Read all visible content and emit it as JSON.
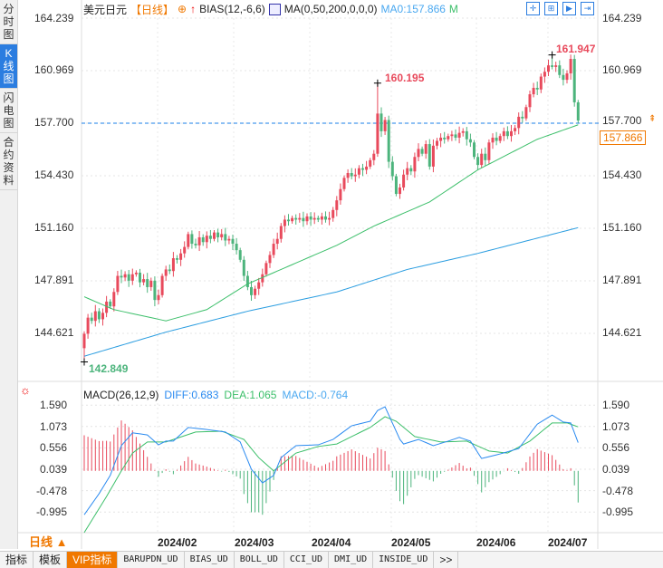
{
  "sidebar": {
    "tabs": [
      {
        "label": "分时图",
        "active": false
      },
      {
        "label": "K线图",
        "active": true
      },
      {
        "label": "闪电图",
        "active": false
      },
      {
        "label": "合约资料",
        "active": false
      }
    ]
  },
  "header": {
    "symbol": "美元日元",
    "period": "【日线】",
    "bias": "BIAS(12,-6,6)",
    "ma": "MA(0,50,200,0,0,0)",
    "ma0": "MA0:157.866",
    "flag": "M",
    "toolbar_icons": [
      "crosshair-icon",
      "zoom-range-icon",
      "play-icon",
      "move-end-icon"
    ]
  },
  "price_axis": {
    "labels": [
      "164.239",
      "160.969",
      "157.700",
      "154.430",
      "151.160",
      "147.891",
      "144.621"
    ]
  },
  "current_price": "157.866",
  "annotations": {
    "high1": "160.195",
    "high2": "161.947",
    "low": "142.849"
  },
  "macd": {
    "title": "MACD(26,12,9)",
    "diff": "DIFF:0.683",
    "dea": "DEA:1.065",
    "macd": "MACD:-0.764",
    "axis_labels": [
      "1.590",
      "1.073",
      "0.556",
      "0.039",
      "-0.478",
      "-0.995"
    ]
  },
  "period_button": "日线 ▲",
  "bottom_tabs": [
    {
      "label": "指标",
      "active": false
    },
    {
      "label": "模板",
      "active": false
    },
    {
      "label": "VIP指标",
      "active": true
    },
    {
      "label": "BARUPDN_UD",
      "active": false
    },
    {
      "label": "BIAS_UD",
      "active": false
    },
    {
      "label": "BOLL_UD",
      "active": false
    },
    {
      "label": "CCI_UD",
      "active": false
    },
    {
      "label": "DMI_UD",
      "active": false
    },
    {
      "label": "INSIDE_UD",
      "active": false
    },
    {
      "label": ">>",
      "active": false
    }
  ],
  "colors": {
    "up": "#e84a5c",
    "down": "#4cb47c",
    "ma50": "#3cbf6a",
    "ma200": "#2a9de0",
    "diff": "#2a8af0",
    "dea": "#3cbf6a",
    "accent": "#f07800",
    "active_tab": "#2b7de0"
  },
  "chart_data": {
    "type": "candlestick",
    "x_tick_labels": [
      "2024/02",
      "2024/03",
      "2024/04",
      "2024/05",
      "2024/06",
      "2024/07"
    ],
    "ylim": [
      142.0,
      164.239
    ],
    "closes": [
      144.6,
      145.6,
      145.4,
      146.0,
      145.5,
      145.9,
      146.6,
      146.3,
      147.2,
      148.2,
      148.1,
      148.3,
      147.9,
      148.3,
      148.4,
      147.8,
      148.0,
      147.5,
      147.9,
      146.7,
      147.0,
      148.2,
      148.6,
      148.5,
      149.3,
      149.2,
      149.6,
      150.0,
      150.8,
      150.2,
      150.1,
      150.6,
      150.3,
      150.7,
      150.5,
      150.9,
      150.6,
      150.8,
      150.4,
      150.5,
      150.2,
      149.8,
      149.2,
      148.2,
      147.5,
      147.0,
      147.4,
      147.8,
      148.3,
      149.0,
      149.5,
      150.2,
      150.5,
      151.3,
      151.7,
      151.6,
      151.8,
      151.7,
      151.8,
      151.6,
      151.9,
      151.7,
      151.8,
      151.7,
      151.9,
      151.7,
      151.8,
      152.3,
      152.9,
      153.6,
      154.3,
      154.6,
      154.4,
      154.5,
      154.9,
      154.8,
      155.0,
      155.4,
      155.8,
      158.3,
      157.2,
      157.9,
      155.3,
      154.4,
      153.3,
      153.7,
      154.5,
      154.9,
      154.7,
      155.6,
      156.1,
      155.8,
      156.4,
      155.0,
      156.3,
      156.6,
      156.8,
      156.7,
      156.9,
      157.0,
      156.8,
      157.1,
      157.2,
      156.7,
      156.5,
      155.6,
      155.1,
      155.8,
      155.4,
      156.5,
      156.8,
      156.6,
      156.9,
      157.2,
      156.9,
      157.2,
      157.4,
      158.1,
      158.0,
      158.7,
      159.5,
      159.9,
      159.8,
      160.6,
      160.9,
      161.3,
      161.2,
      161.3,
      160.7,
      160.4,
      160.8,
      161.7,
      159.0,
      157.866
    ],
    "extremes": [
      {
        "index": 0,
        "low": 142.849
      },
      {
        "index": 79,
        "high": 160.195
      },
      {
        "index": 126,
        "high": 161.947
      }
    ],
    "ma50": [
      [
        0,
        146.9
      ],
      [
        8,
        146.1
      ],
      [
        22,
        145.4
      ],
      [
        33,
        146.1
      ],
      [
        44,
        147.7
      ],
      [
        55,
        148.8
      ],
      [
        68,
        150.1
      ],
      [
        78,
        151.3
      ],
      [
        93,
        152.8
      ],
      [
        106,
        154.8
      ],
      [
        122,
        156.7
      ],
      [
        133,
        157.6
      ]
    ],
    "ma200": [
      [
        0,
        143.2
      ],
      [
        22,
        144.7
      ],
      [
        44,
        146.0
      ],
      [
        68,
        147.2
      ],
      [
        87,
        148.6
      ],
      [
        106,
        149.6
      ],
      [
        133,
        151.2
      ]
    ],
    "macd_ylim": [
      -1.2,
      1.75
    ],
    "dif": [
      [
        0,
        -1.06
      ],
      [
        4,
        -0.55
      ],
      [
        7,
        -0.11
      ],
      [
        10,
        0.61
      ],
      [
        13,
        0.92
      ],
      [
        17,
        0.87
      ],
      [
        20,
        0.63
      ],
      [
        22,
        0.72
      ],
      [
        24,
        0.72
      ],
      [
        28,
        1.05
      ],
      [
        33,
        1.0
      ],
      [
        38,
        0.94
      ],
      [
        42,
        0.7
      ],
      [
        45,
        0.04
      ],
      [
        48,
        -0.29
      ],
      [
        51,
        -0.11
      ],
      [
        53,
        0.32
      ],
      [
        57,
        0.61
      ],
      [
        63,
        0.63
      ],
      [
        67,
        0.76
      ],
      [
        72,
        1.09
      ],
      [
        77,
        1.2
      ],
      [
        79,
        1.46
      ],
      [
        81,
        1.55
      ],
      [
        85,
        0.76
      ],
      [
        86,
        0.65
      ],
      [
        90,
        0.76
      ],
      [
        94,
        0.61
      ],
      [
        98,
        0.72
      ],
      [
        101,
        0.81
      ],
      [
        104,
        0.72
      ],
      [
        107,
        0.3
      ],
      [
        112,
        0.41
      ],
      [
        117,
        0.54
      ],
      [
        122,
        1.13
      ],
      [
        126,
        1.35
      ],
      [
        129,
        1.18
      ],
      [
        131,
        1.16
      ],
      [
        133,
        0.683
      ]
    ],
    "dea": [
      [
        0,
        -1.49
      ],
      [
        6,
        -0.62
      ],
      [
        10,
        0.0
      ],
      [
        13,
        0.43
      ],
      [
        17,
        0.7
      ],
      [
        22,
        0.7
      ],
      [
        30,
        0.94
      ],
      [
        37,
        0.96
      ],
      [
        43,
        0.76
      ],
      [
        47,
        0.32
      ],
      [
        51,
        0.0
      ],
      [
        57,
        0.43
      ],
      [
        63,
        0.59
      ],
      [
        68,
        0.65
      ],
      [
        72,
        0.83
      ],
      [
        77,
        1.05
      ],
      [
        81,
        1.31
      ],
      [
        84,
        1.2
      ],
      [
        89,
        0.83
      ],
      [
        96,
        0.7
      ],
      [
        103,
        0.72
      ],
      [
        109,
        0.48
      ],
      [
        114,
        0.43
      ],
      [
        120,
        0.72
      ],
      [
        126,
        1.16
      ],
      [
        130,
        1.16
      ],
      [
        133,
        1.065
      ]
    ]
  }
}
